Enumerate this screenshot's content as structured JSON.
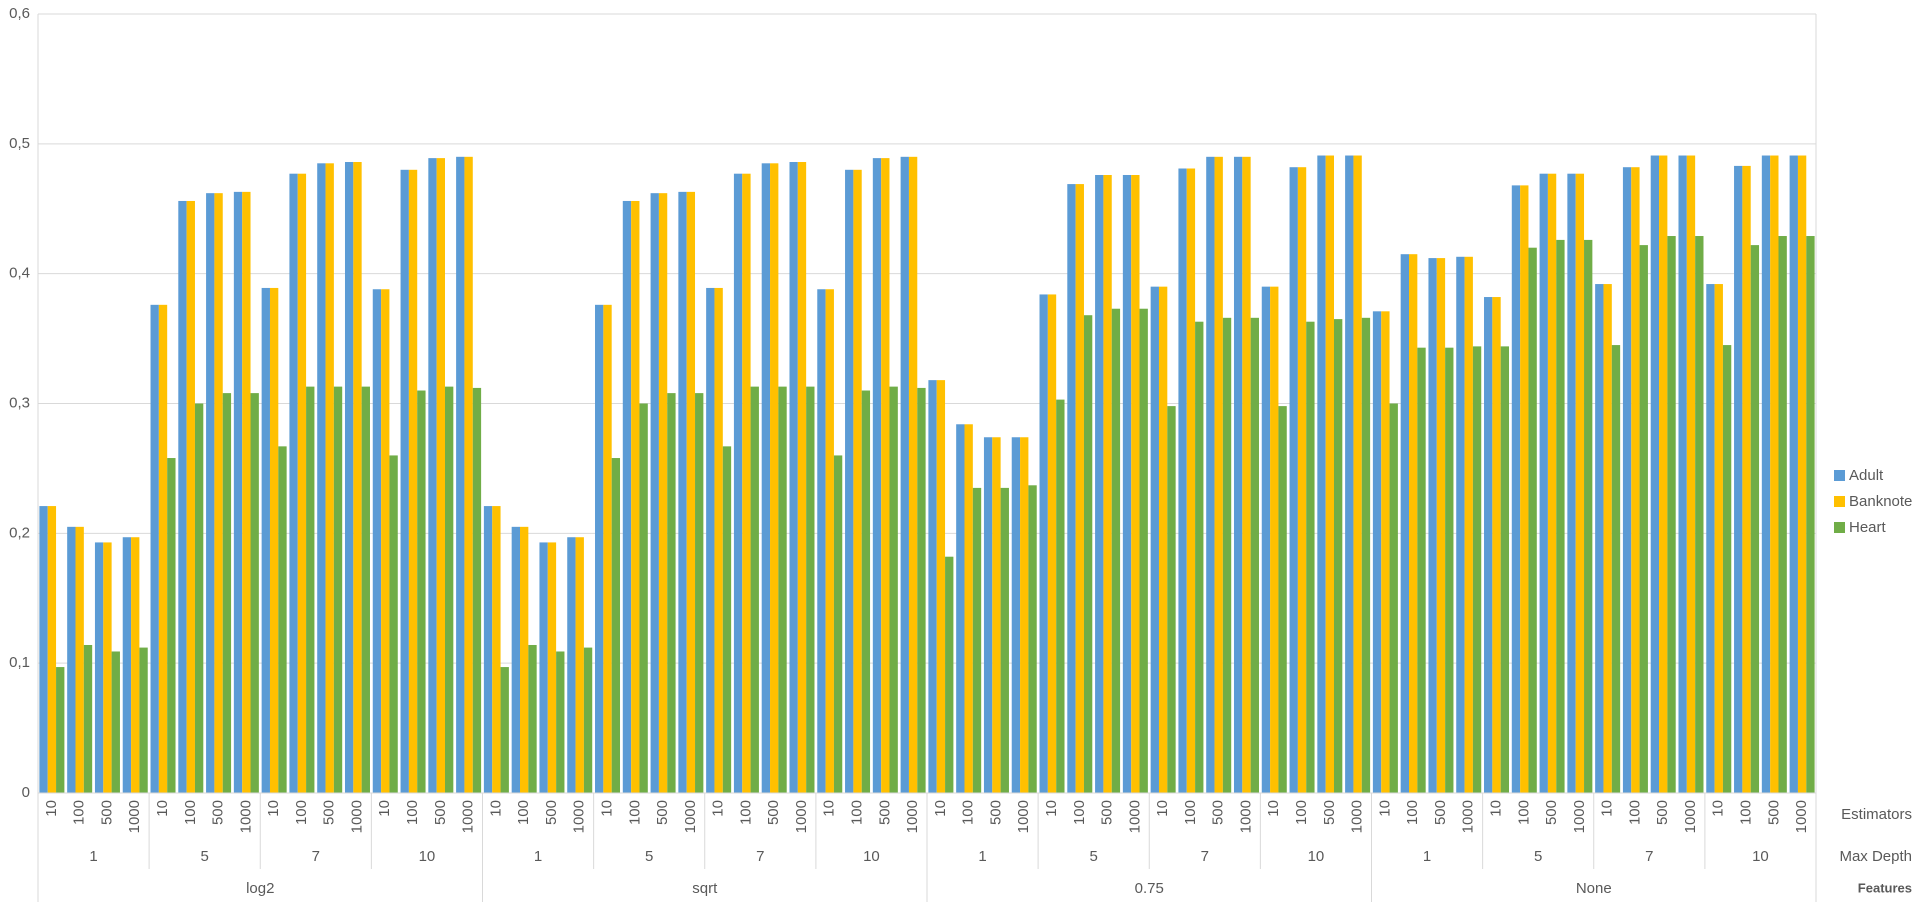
{
  "chart_data": {
    "type": "bar",
    "categories": [
      "10",
      "100",
      "500",
      "1000",
      "10",
      "100",
      "500",
      "1000",
      "10",
      "100",
      "500",
      "1000",
      "10",
      "100",
      "500",
      "1000",
      "10",
      "100",
      "500",
      "1000",
      "10",
      "100",
      "500",
      "1000",
      "10",
      "100",
      "500",
      "1000",
      "10",
      "100",
      "500",
      "1000",
      "10",
      "100",
      "500",
      "1000",
      "10",
      "100",
      "500",
      "1000",
      "10",
      "100",
      "500",
      "1000",
      "10",
      "100",
      "500",
      "1000",
      "10",
      "100",
      "500",
      "1000",
      "10",
      "100",
      "500",
      "1000",
      "10",
      "100",
      "500",
      "1000",
      "10",
      "100",
      "500",
      "1000"
    ],
    "x_level_names": [
      "Estimators",
      "Max Depth",
      "Features"
    ],
    "x_groups": [
      [
        "1",
        "5",
        "7",
        "10",
        "1",
        "5",
        "7",
        "10",
        "1",
        "5",
        "7",
        "10",
        "1",
        "5",
        "7",
        "10"
      ],
      [
        "log2",
        "sqrt",
        "0.75",
        "None"
      ]
    ],
    "series": [
      {
        "name": "Adult",
        "color": "#5b9bd5",
        "values": [
          0.221,
          0.205,
          0.193,
          0.197,
          0.376,
          0.456,
          0.462,
          0.463,
          0.389,
          0.477,
          0.485,
          0.486,
          0.388,
          0.48,
          0.489,
          0.49,
          0.221,
          0.205,
          0.193,
          0.197,
          0.376,
          0.456,
          0.462,
          0.463,
          0.389,
          0.477,
          0.485,
          0.486,
          0.388,
          0.48,
          0.489,
          0.49,
          0.318,
          0.284,
          0.274,
          0.274,
          0.384,
          0.469,
          0.476,
          0.476,
          0.39,
          0.481,
          0.49,
          0.49,
          0.39,
          0.482,
          0.491,
          0.491,
          0.371,
          0.415,
          0.412,
          0.413,
          0.382,
          0.468,
          0.477,
          0.477,
          0.392,
          0.482,
          0.491,
          0.491,
          0.392,
          0.483,
          0.491,
          0.491
        ]
      },
      {
        "name": "Banknote",
        "color": "#ffc000",
        "values": [
          0.221,
          0.205,
          0.193,
          0.197,
          0.376,
          0.456,
          0.462,
          0.463,
          0.389,
          0.477,
          0.485,
          0.486,
          0.388,
          0.48,
          0.489,
          0.49,
          0.221,
          0.205,
          0.193,
          0.197,
          0.376,
          0.456,
          0.462,
          0.463,
          0.389,
          0.477,
          0.485,
          0.486,
          0.388,
          0.48,
          0.489,
          0.49,
          0.318,
          0.284,
          0.274,
          0.274,
          0.384,
          0.469,
          0.476,
          0.476,
          0.39,
          0.481,
          0.49,
          0.49,
          0.39,
          0.482,
          0.491,
          0.491,
          0.371,
          0.415,
          0.412,
          0.413,
          0.382,
          0.468,
          0.477,
          0.477,
          0.392,
          0.482,
          0.491,
          0.491,
          0.392,
          0.483,
          0.491,
          0.491
        ]
      },
      {
        "name": "Heart",
        "color": "#70ad47",
        "values": [
          0.097,
          0.114,
          0.109,
          0.112,
          0.258,
          0.3,
          0.308,
          0.308,
          0.267,
          0.313,
          0.313,
          0.313,
          0.26,
          0.31,
          0.313,
          0.312,
          0.097,
          0.114,
          0.109,
          0.112,
          0.258,
          0.3,
          0.308,
          0.308,
          0.267,
          0.313,
          0.313,
          0.313,
          0.26,
          0.31,
          0.313,
          0.312,
          0.182,
          0.235,
          0.235,
          0.237,
          0.303,
          0.368,
          0.373,
          0.373,
          0.298,
          0.363,
          0.366,
          0.366,
          0.298,
          0.363,
          0.365,
          0.366,
          0.3,
          0.343,
          0.343,
          0.344,
          0.344,
          0.42,
          0.426,
          0.426,
          0.345,
          0.422,
          0.429,
          0.429,
          0.345,
          0.422,
          0.429,
          0.429
        ]
      }
    ],
    "ylim": [
      0,
      0.6
    ],
    "yticks": [
      0,
      {
        "value": 0.1,
        "label": "0,1"
      },
      {
        "value": 0.2,
        "label": "0,2"
      },
      {
        "value": 0.3,
        "label": "0,3"
      },
      {
        "value": 0.4,
        "label": "0,4"
      },
      {
        "value": 0.5,
        "label": "0,5"
      },
      {
        "value": 0.6,
        "label": "0,6"
      }
    ],
    "grid": true,
    "legend": "right"
  }
}
